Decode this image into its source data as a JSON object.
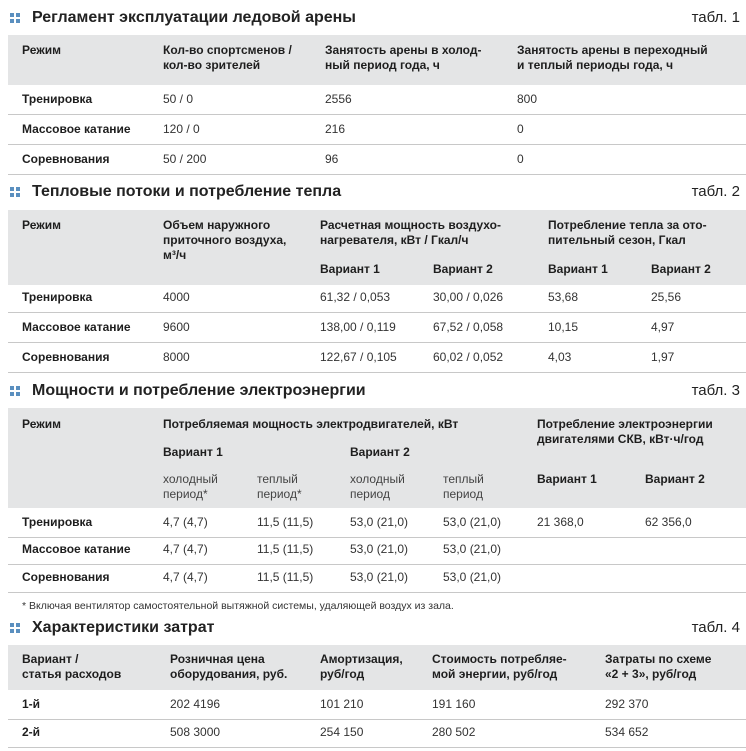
{
  "table1": {
    "title": "Регламент эксплуатации ледовой арены",
    "tag": "табл. 1",
    "header": [
      "Режим",
      "Кол-во спортсменов /\nкол-во зрителей",
      "Занятость арены в холод-\nный период года, ч",
      "Занятость арены в переходный\nи теплый периоды года, ч"
    ],
    "rows": [
      [
        "Тренировка",
        "50 / 0",
        "2556",
        "800"
      ],
      [
        "Массовое катание",
        "120 / 0",
        "216",
        "0"
      ],
      [
        "Соревнования",
        "50 / 200",
        "96",
        "0"
      ]
    ]
  },
  "table2": {
    "title": "Тепловые потоки и потребление тепла",
    "tag": "табл. 2",
    "header": [
      "Режим",
      "Объем наружного\nприточного воздуха,\nм³/ч",
      "Расчетная мощность воздухо-\nнагревателя, кВт / Гкал/ч",
      "Потребление тепла за ото-\nпительный сезон, Гкал"
    ],
    "subheader": [
      "Вариант 1",
      "Вариант 2",
      "Вариант 1",
      "Вариант 2"
    ],
    "rows": [
      [
        "Тренировка",
        "4000",
        "61,32 / 0,053",
        "30,00 / 0,026",
        "53,68",
        "25,56"
      ],
      [
        "Массовое катание",
        "9600",
        "138,00 / 0,119",
        "67,52 / 0,058",
        "10,15",
        "4,97"
      ],
      [
        "Соревнования",
        "8000",
        "122,67 / 0,105",
        "60,02 / 0,052",
        "4,03",
        "1,97"
      ]
    ]
  },
  "table3": {
    "title": "Мощности и потребление электроэнергии",
    "tag": "табл. 3",
    "header": [
      "Режим",
      "Потребляемая мощность электродвигателей, кВт",
      "Потребление электроэнергии\nдвигателями СКВ, кВт·ч/год"
    ],
    "variants": [
      "Вариант 1",
      "Вариант 2"
    ],
    "periods": [
      "холодный\nпериод*",
      "теплый\nпериод*",
      "холодный\nпериод",
      "теплый\nпериод"
    ],
    "subheader": [
      "Вариант 1",
      "Вариант 2"
    ],
    "rows": [
      [
        "Тренировка",
        "4,7 (4,7)",
        "11,5 (11,5)",
        "53,0 (21,0)",
        "53,0 (21,0)",
        "21 368,0",
        "62 356,0"
      ],
      [
        "Массовое катание",
        "4,7 (4,7)",
        "11,5 (11,5)",
        "53,0 (21,0)",
        "53,0 (21,0)",
        "",
        ""
      ],
      [
        "Соревнования",
        "4,7 (4,7)",
        "11,5 (11,5)",
        "53,0 (21,0)",
        "53,0 (21,0)",
        "",
        ""
      ]
    ],
    "footnote": "* Включая вентилятор самостоятельной вытяжной системы, удаляющей воздух из зала."
  },
  "table4": {
    "title": "Характеристики затрат",
    "tag": "табл. 4",
    "header": [
      "Вариант /\nстатья расходов",
      "Розничная цена\nоборудования, руб.",
      "Амортизация,\nруб/год",
      "Стоимость потребляе-\nмой энергии, руб/год",
      "Затраты по схеме\n«2 + 3», руб/год"
    ],
    "rows": [
      [
        "1-й",
        "202 4196",
        "101 210",
        "191 160",
        "292 370"
      ],
      [
        "2-й",
        "508 3000",
        "254 150",
        "280 502",
        "534 652"
      ]
    ]
  }
}
